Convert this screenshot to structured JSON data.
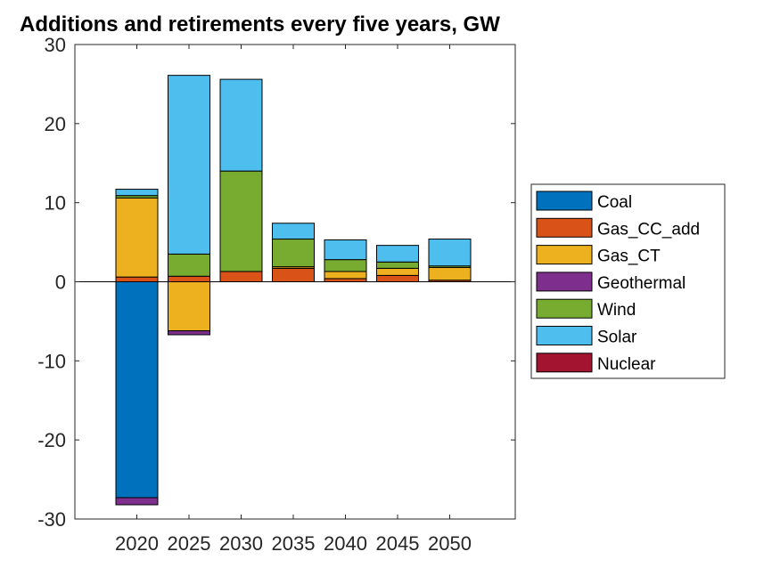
{
  "chart_data": {
    "type": "bar",
    "stacked": true,
    "title": "Additions and retirements every five years, GW",
    "xlabel": "",
    "ylabel": "",
    "categories": [
      "2020",
      "2025",
      "2030",
      "2035",
      "2040",
      "2045",
      "2050"
    ],
    "ylim": [
      -30,
      30
    ],
    "yticks": [
      -30,
      -20,
      -10,
      0,
      10,
      20,
      30
    ],
    "legend_position": "right",
    "grid": false,
    "series": [
      {
        "name": "Coal",
        "color": "#0072BD",
        "values": [
          -27.3,
          0,
          0,
          0,
          0,
          0,
          0
        ]
      },
      {
        "name": "Gas_CC_add",
        "color": "#D95319",
        "values": [
          0.6,
          0.7,
          1.3,
          1.7,
          0.4,
          0.8,
          0.2
        ]
      },
      {
        "name": "Gas_CT",
        "color": "#EDB120",
        "values": [
          10.0,
          -6.2,
          0,
          0.2,
          0.9,
          0.9,
          1.6
        ]
      },
      {
        "name": "Geothermal",
        "color": "#7E2F8E",
        "values": [
          -0.9,
          -0.5,
          0,
          0,
          0,
          0,
          0
        ]
      },
      {
        "name": "Wind",
        "color": "#77AC30",
        "values": [
          0.3,
          2.8,
          12.7,
          3.5,
          1.5,
          0.8,
          0.2
        ]
      },
      {
        "name": "Solar",
        "color": "#4DBEEE",
        "values": [
          0.8,
          22.6,
          11.6,
          2.0,
          2.5,
          2.1,
          3.4
        ]
      },
      {
        "name": "Nuclear",
        "color": "#A2142F",
        "values": [
          0,
          0,
          0,
          0,
          0,
          0,
          0
        ]
      }
    ]
  }
}
